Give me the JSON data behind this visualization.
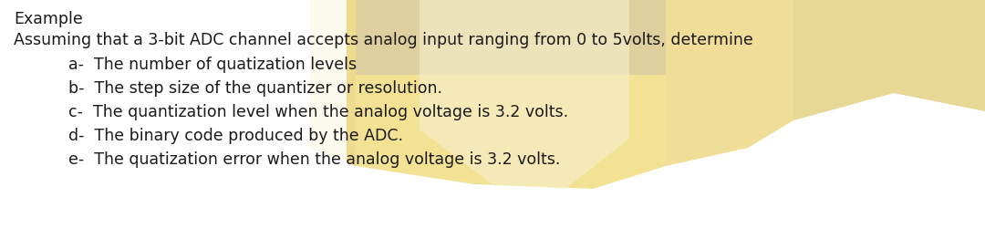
{
  "background_color": "#ffffff",
  "text_color": "#1a1a1a",
  "title": "Example",
  "line1": "Assuming that a 3-bit ADC channel accepts analog input ranging from 0 to 5volts, determine",
  "items": [
    "a-  The number of quatization levels",
    "b-  The step size of the quantizer or resolution.",
    "c-  The quantization level when the analog voltage is 3.2 volts.",
    "d-  The binary code produced by the ADC.",
    "e-  The quatization error when the analog voltage is 3.2 volts."
  ],
  "title_fontsize": 12.5,
  "body_fontsize": 12.5,
  "watermark_color_light": "#f5e6a0",
  "watermark_color_dark": "#c8a840",
  "watermark_gray": "#b0b0b0"
}
